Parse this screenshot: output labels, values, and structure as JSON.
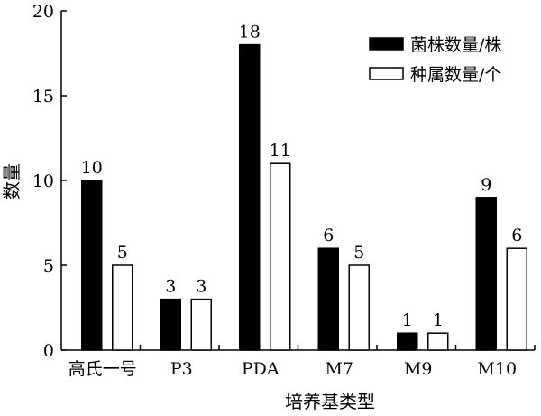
{
  "chart_data": {
    "type": "bar",
    "categories": [
      "高氏一号",
      "P3",
      "PDA",
      "M7",
      "M9",
      "M10"
    ],
    "series": [
      {
        "name": "菌株数量/株",
        "values": [
          10,
          3,
          18,
          6,
          1,
          9
        ],
        "fill": "#000000"
      },
      {
        "name": "种属数量/个",
        "values": [
          5,
          3,
          11,
          5,
          1,
          6
        ],
        "fill": "#ffffff"
      }
    ],
    "xlabel": "培养基类型",
    "ylabel": "数量",
    "ylim": [
      0,
      20
    ],
    "yticks": [
      0,
      5,
      10,
      15,
      20
    ],
    "data_labels": true,
    "grid": false,
    "legend_position": "top-right"
  }
}
